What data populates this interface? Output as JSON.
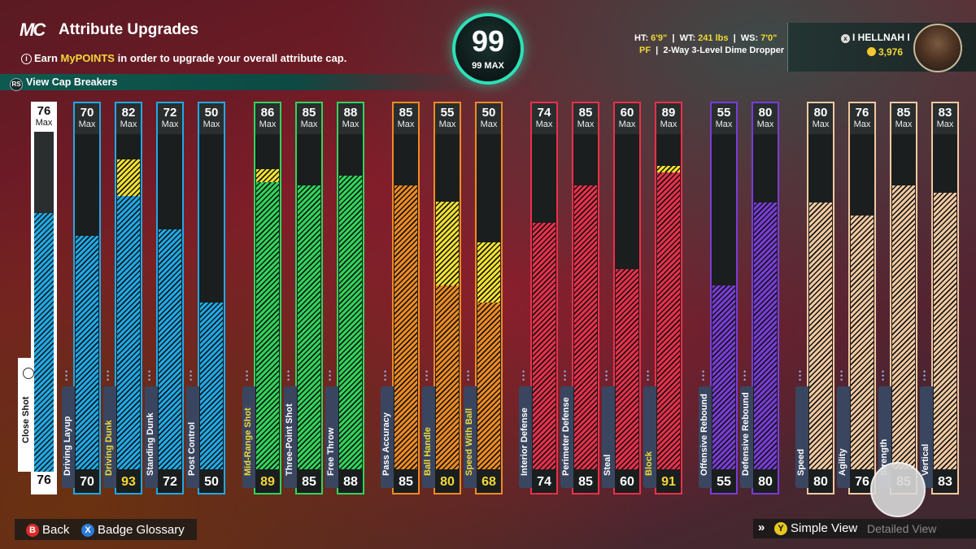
{
  "header": {
    "logo": "MC",
    "title": "Attribute Upgrades",
    "info_prefix": "Earn ",
    "info_highlight": "MyPOINTS",
    "info_suffix": " in order to upgrade your overall attribute cap.",
    "cap_breakers": "View Cap Breakers",
    "cap_btn_glyph": "RS"
  },
  "overall": {
    "value": "99",
    "max_label": "99 MAX",
    "accent": "#2ee0b8"
  },
  "player": {
    "ht_label": "HT:",
    "ht": "6'9\"",
    "wt_label": "WT:",
    "wt": "241 lbs",
    "ws_label": "WS:",
    "ws": "7'0\"",
    "position": "PF",
    "archetype": "2-Way 3-Level Dime Dropper",
    "gamertag": "I HELLNAH I",
    "vc": "3,976"
  },
  "colors": {
    "finishing": "#1ea9e8",
    "shooting": "#2fd45a",
    "playmaking": "#f08a22",
    "defense": "#ec2f4a",
    "rebounding": "#7a3cd8",
    "physicals": "#f2c8a0",
    "upgrade": "#f2e030"
  },
  "attributes": [
    {
      "name": "Close Shot",
      "max": "76",
      "value": "76",
      "pct": 0.76,
      "pending": 0,
      "group": "finishing",
      "highlight": false
    },
    {
      "name": "Driving Layup",
      "max": "70",
      "value": "70",
      "pct": 0.7,
      "pending": 0,
      "group": "finishing",
      "highlight": false
    },
    {
      "name": "Driving Dunk",
      "max": "82",
      "value": "93",
      "pct": 0.82,
      "pending": 0.11,
      "group": "finishing",
      "highlight": true
    },
    {
      "name": "Standing Dunk",
      "max": "72",
      "value": "72",
      "pct": 0.72,
      "pending": 0,
      "group": "finishing",
      "highlight": false
    },
    {
      "name": "Post Control",
      "max": "50",
      "value": "50",
      "pct": 0.5,
      "pending": 0,
      "group": "finishing",
      "highlight": false
    },
    {
      "name": "Mid-Range Shot",
      "max": "86",
      "value": "89",
      "pct": 0.86,
      "pending": 0.04,
      "group": "shooting",
      "highlight": true
    },
    {
      "name": "Three-Point Shot",
      "max": "85",
      "value": "85",
      "pct": 0.85,
      "pending": 0,
      "group": "shooting",
      "highlight": false
    },
    {
      "name": "Free Throw",
      "max": "88",
      "value": "88",
      "pct": 0.88,
      "pending": 0,
      "group": "shooting",
      "highlight": false
    },
    {
      "name": "Pass Accuracy",
      "max": "85",
      "value": "85",
      "pct": 0.85,
      "pending": 0,
      "group": "playmaking",
      "highlight": false
    },
    {
      "name": "Ball Handle",
      "max": "55",
      "value": "80",
      "pct": 0.55,
      "pending": 0.25,
      "group": "playmaking",
      "highlight": true
    },
    {
      "name": "Speed With Ball",
      "max": "50",
      "value": "68",
      "pct": 0.5,
      "pending": 0.18,
      "group": "playmaking",
      "highlight": true
    },
    {
      "name": "Interior Defense",
      "max": "74",
      "value": "74",
      "pct": 0.74,
      "pending": 0,
      "group": "defense",
      "highlight": false
    },
    {
      "name": "Perimeter Defense",
      "max": "85",
      "value": "85",
      "pct": 0.85,
      "pending": 0,
      "group": "defense",
      "highlight": false
    },
    {
      "name": "Steal",
      "max": "60",
      "value": "60",
      "pct": 0.6,
      "pending": 0,
      "group": "defense",
      "highlight": false
    },
    {
      "name": "Block",
      "max": "89",
      "value": "91",
      "pct": 0.89,
      "pending": 0.02,
      "group": "defense",
      "highlight": true
    },
    {
      "name": "Offensive Rebound",
      "max": "55",
      "value": "55",
      "pct": 0.55,
      "pending": 0,
      "group": "rebounding",
      "highlight": false
    },
    {
      "name": "Defensive Rebound",
      "max": "80",
      "value": "80",
      "pct": 0.8,
      "pending": 0,
      "group": "rebounding",
      "highlight": false
    },
    {
      "name": "Speed",
      "max": "80",
      "value": "80",
      "pct": 0.8,
      "pending": 0,
      "group": "physicals",
      "highlight": false
    },
    {
      "name": "Agility",
      "max": "76",
      "value": "76",
      "pct": 0.76,
      "pending": 0,
      "group": "physicals",
      "highlight": false
    },
    {
      "name": "Strength",
      "max": "85",
      "value": "85",
      "pct": 0.85,
      "pending": 0,
      "group": "physicals",
      "highlight": false
    },
    {
      "name": "Vertical",
      "max": "83",
      "value": "83",
      "pct": 0.83,
      "pending": 0,
      "group": "physicals",
      "highlight": false
    }
  ],
  "max_label": "Max",
  "footer": {
    "back_glyph": "B",
    "back": "Back",
    "glossary_glyph": "X",
    "glossary": "Badge Glossary",
    "view_arrows": "»",
    "simple_glyph": "Y",
    "simple": "Simple View",
    "detailed": "Detailed View"
  }
}
